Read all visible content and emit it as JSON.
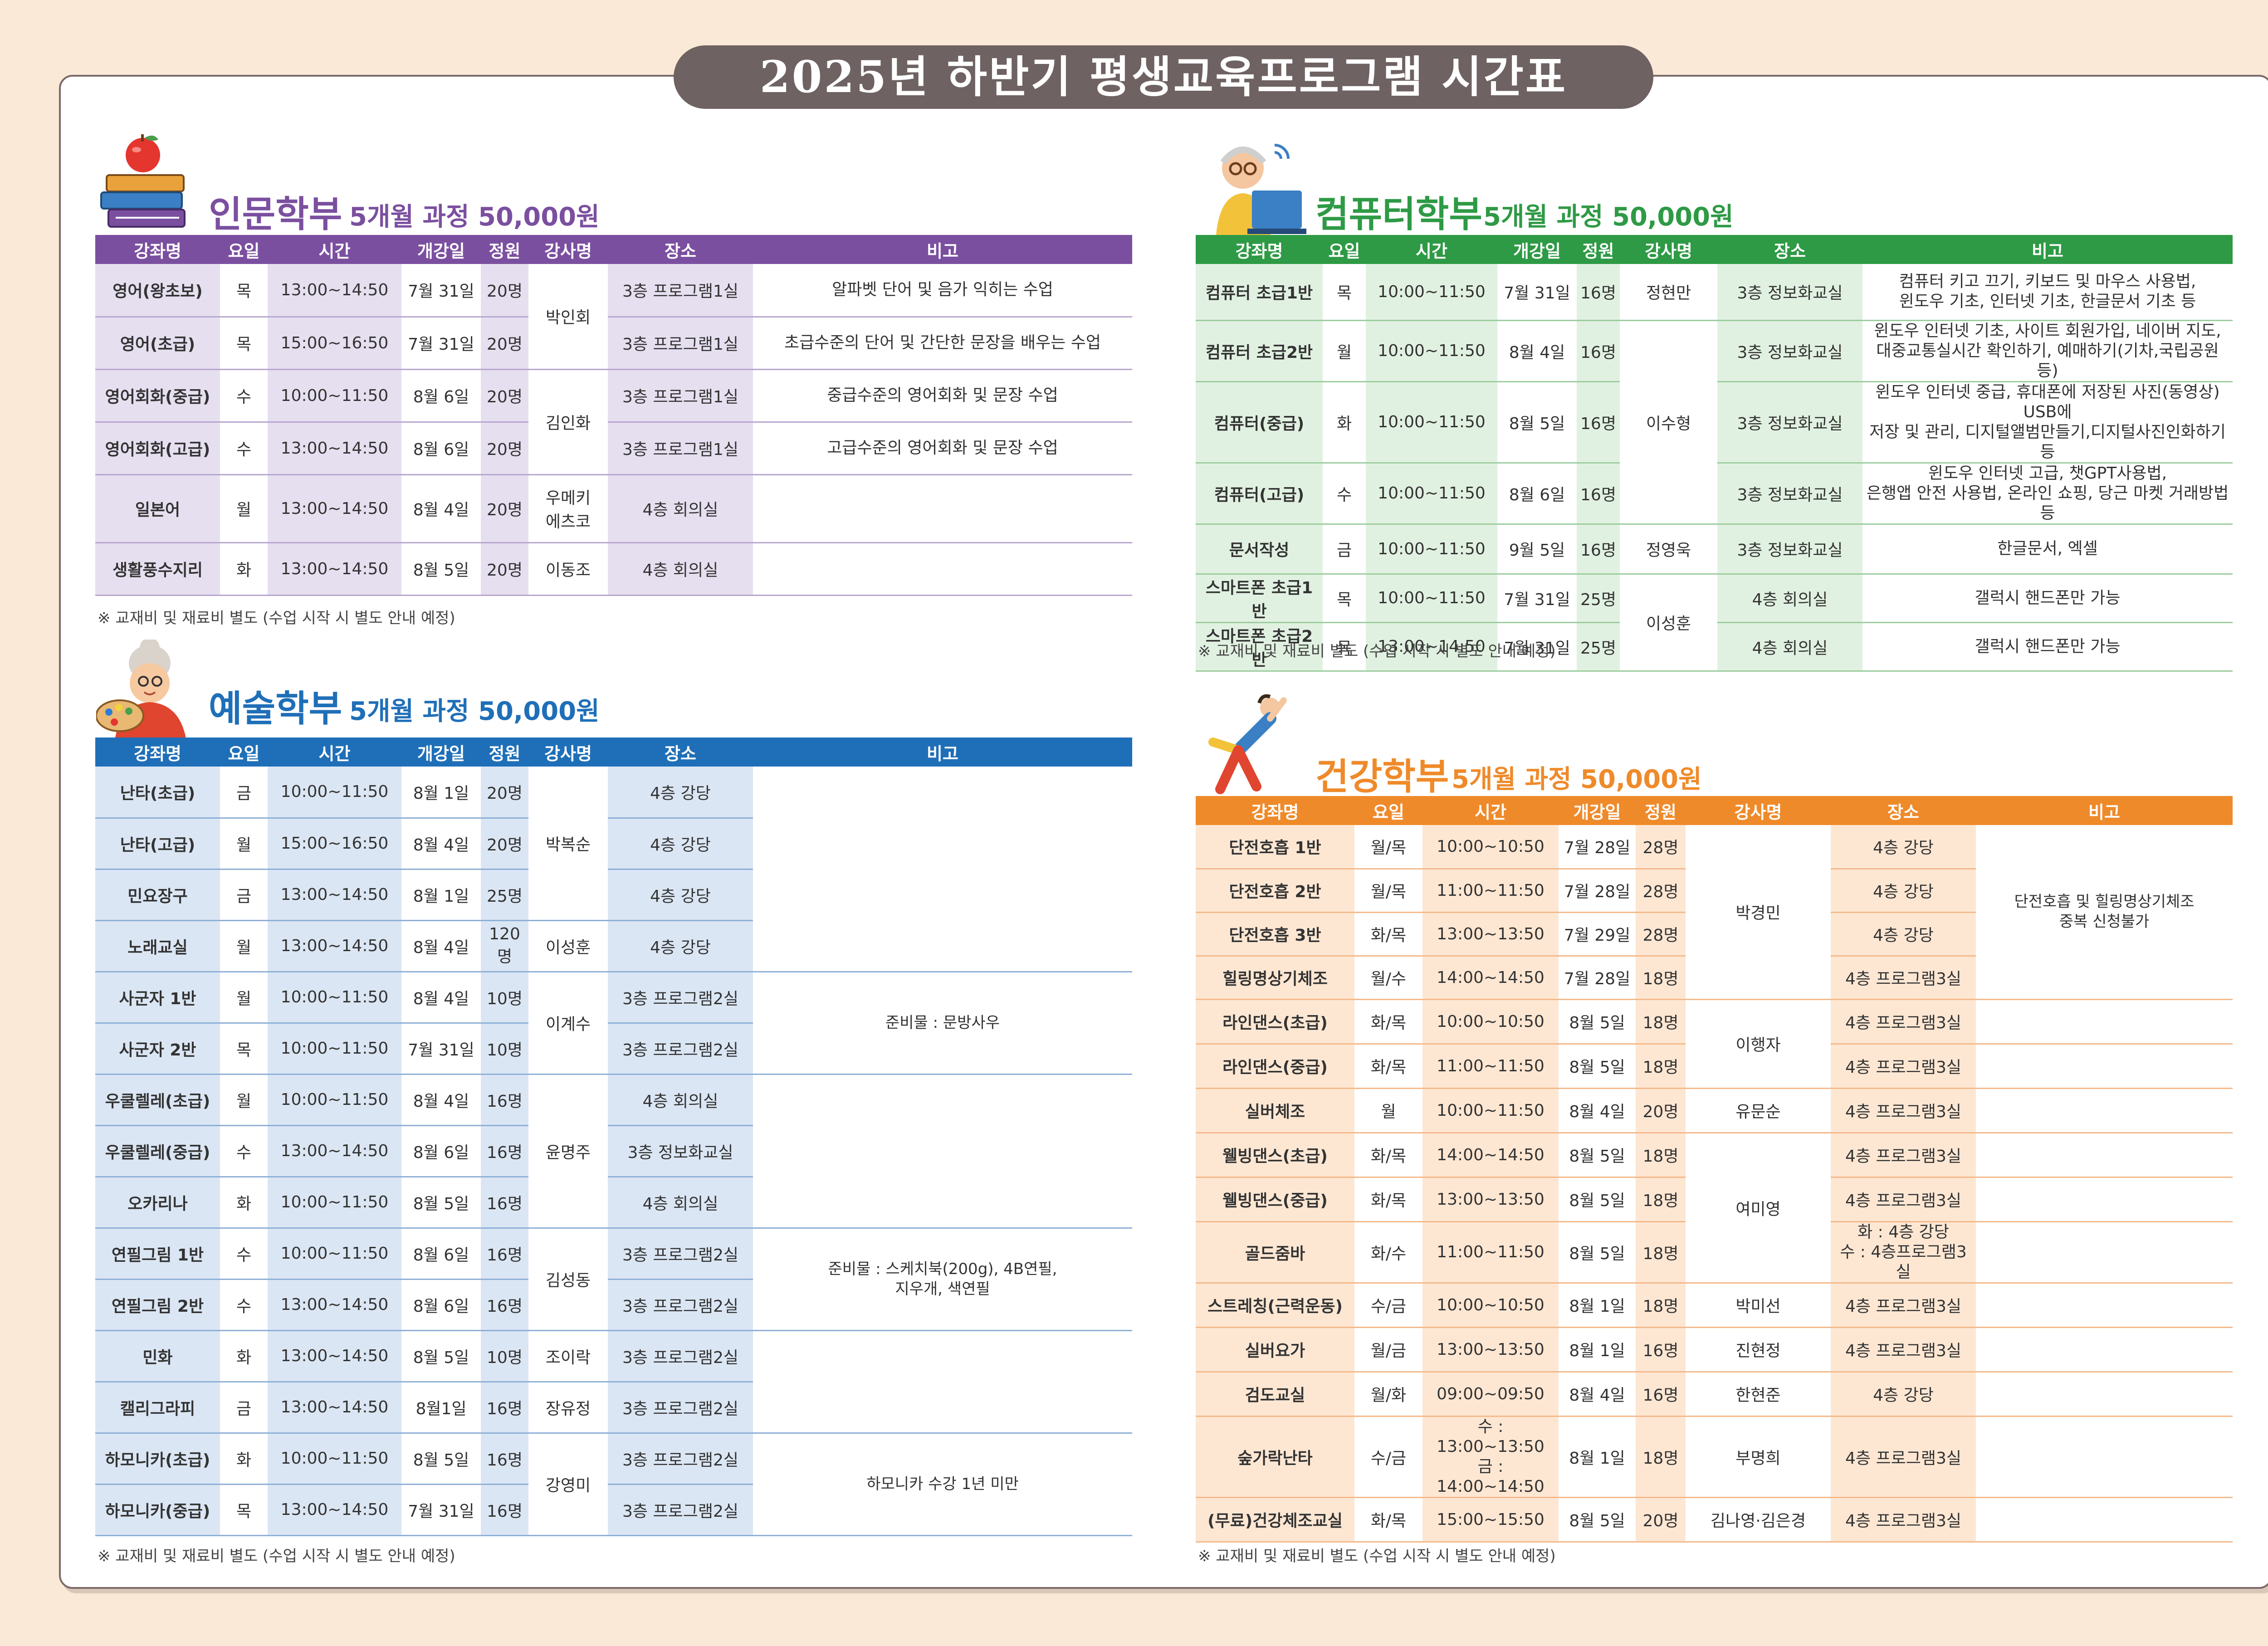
{
  "title": "2025년 하반기 평생교육프로그램 시간표",
  "footnote": "※ 교재비 및 재료비 별도 (수업 시작 시 별도 안내 예정)",
  "headers": [
    "강좌명",
    "요일",
    "시간",
    "개강일",
    "정원",
    "강사명",
    "장소",
    "비고"
  ],
  "humanities": {
    "name": "인문학부",
    "price": "5개월 과정 50,000원",
    "colors": {
      "accent": "#7b4fa0",
      "band": "#e6dff0",
      "line": "#b8a6cf"
    },
    "rows": [
      {
        "course": "영어(왕초보)",
        "day": "목",
        "time": "13:00~14:50",
        "start": "7월 31일",
        "cap": "20명",
        "place": "3층 프로그램1실",
        "note": "알파벳 단어 및 음가 익히는 수업"
      },
      {
        "course": "영어(초급)",
        "day": "목",
        "time": "15:00~16:50",
        "start": "7월 31일",
        "cap": "20명",
        "place": "3층 프로그램1실",
        "note": "초급수준의 단어 및 간단한 문장을 배우는 수업"
      },
      {
        "course": "영어회화(중급)",
        "day": "수",
        "time": "10:00~11:50",
        "start": "8월 6일",
        "cap": "20명",
        "place": "3층 프로그램1실",
        "note": "중급수준의 영어회화 및 문장 수업"
      },
      {
        "course": "영어회화(고급)",
        "day": "수",
        "time": "13:00~14:50",
        "start": "8월 6일",
        "cap": "20명",
        "place": "3층 프로그램1실",
        "note": "고급수준의 영어회화 및 문장 수업"
      },
      {
        "course": "일본어",
        "day": "월",
        "time": "13:00~14:50",
        "start": "8월 4일",
        "cap": "20명",
        "place": "4층 회의실",
        "note": ""
      },
      {
        "course": "생활풍수지리",
        "day": "화",
        "time": "13:00~14:50",
        "start": "8월 5일",
        "cap": "20명",
        "place": "4층 회의실",
        "note": ""
      }
    ],
    "teachers": [
      "박인회",
      "김인화",
      "우메키\n에츠코",
      "이동조"
    ]
  },
  "arts": {
    "name": "예술학부",
    "price": "5개월 과정 50,000원",
    "colors": {
      "accent": "#1f6fb8",
      "band": "#dbe6f4",
      "line": "#8fb0d6"
    },
    "rows": [
      {
        "course": "난타(초급)",
        "day": "금",
        "time": "10:00~11:50",
        "start": "8월 1일",
        "cap": "20명",
        "place": "4층 강당"
      },
      {
        "course": "난타(고급)",
        "day": "월",
        "time": "15:00~16:50",
        "start": "8월 4일",
        "cap": "20명",
        "place": "4층 강당"
      },
      {
        "course": "민요장구",
        "day": "금",
        "time": "13:00~14:50",
        "start": "8월 1일",
        "cap": "25명",
        "place": "4층 강당"
      },
      {
        "course": "노래교실",
        "day": "월",
        "time": "13:00~14:50",
        "start": "8월 4일",
        "cap": "120명",
        "place": "4층 강당"
      },
      {
        "course": "사군자 1반",
        "day": "월",
        "time": "10:00~11:50",
        "start": "8월 4일",
        "cap": "10명",
        "place": "3층 프로그램2실"
      },
      {
        "course": "사군자 2반",
        "day": "목",
        "time": "10:00~11:50",
        "start": "7월 31일",
        "cap": "10명",
        "place": "3층 프로그램2실"
      },
      {
        "course": "우쿨렐레(초급)",
        "day": "월",
        "time": "10:00~11:50",
        "start": "8월 4일",
        "cap": "16명",
        "place": "4층 회의실"
      },
      {
        "course": "우쿨렐레(중급)",
        "day": "수",
        "time": "13:00~14:50",
        "start": "8월 6일",
        "cap": "16명",
        "place": "3층 정보화교실"
      },
      {
        "course": "오카리나",
        "day": "화",
        "time": "10:00~11:50",
        "start": "8월 5일",
        "cap": "16명",
        "place": "4층 회의실"
      },
      {
        "course": "연필그림 1반",
        "day": "수",
        "time": "10:00~11:50",
        "start": "8월 6일",
        "cap": "16명",
        "place": "3층 프로그램2실"
      },
      {
        "course": "연필그림 2반",
        "day": "수",
        "time": "13:00~14:50",
        "start": "8월 6일",
        "cap": "16명",
        "place": "3층 프로그램2실"
      },
      {
        "course": "민화",
        "day": "화",
        "time": "13:00~14:50",
        "start": "8월 5일",
        "cap": "10명",
        "place": "3층 프로그램2실"
      },
      {
        "course": "캘리그라피",
        "day": "금",
        "time": "13:00~14:50",
        "start": "8월1일",
        "cap": "16명",
        "place": "3층 프로그램2실"
      },
      {
        "course": "하모니카(초급)",
        "day": "화",
        "time": "10:00~11:50",
        "start": "8월 5일",
        "cap": "16명",
        "place": "3층 프로그램2실"
      },
      {
        "course": "하모니카(중급)",
        "day": "목",
        "time": "13:00~14:50",
        "start": "7월 31일",
        "cap": "16명",
        "place": "3층 프로그램2실"
      }
    ],
    "teachers": [
      "박복순",
      "이성훈",
      "이계수",
      "윤명주",
      "김성동",
      "조이락",
      "장유정",
      "강영미"
    ],
    "notes": [
      "준비물 : 문방사우",
      "준비물 : 스케치북(200g), 4B연필,\n지우개, 색연필",
      "하모니카 수강 1년 미만"
    ]
  },
  "computer": {
    "name": "컴퓨터학부",
    "price": "5개월 과정 50,000원",
    "colors": {
      "accent": "#2e9a45",
      "band": "#e1f1e1",
      "line": "#9ccd9f"
    },
    "rows": [
      {
        "course": "컴퓨터 초급1반",
        "day": "목",
        "time": "10:00~11:50",
        "start": "7월 31일",
        "cap": "16명",
        "place": "3층 정보화교실",
        "note": "컴퓨터 키고 끄기, 키보드 및 마우스 사용법,\n윈도우 기초, 인터넷 기초, 한글문서 기초 등"
      },
      {
        "course": "컴퓨터 초급2반",
        "day": "월",
        "time": "10:00~11:50",
        "start": "8월 4일",
        "cap": "16명",
        "place": "3층 정보화교실",
        "note": "윈도우 인터넷 기초, 사이트 회원가입, 네이버 지도,\n대중교통실시간 확인하기, 예매하기(기차,국립공원 등)"
      },
      {
        "course": "컴퓨터(중급)",
        "day": "화",
        "time": "10:00~11:50",
        "start": "8월 5일",
        "cap": "16명",
        "place": "3층 정보화교실",
        "note": "윈도우 인터넷 중급, 휴대폰에 저장된 사진(동영상) USB에\n저장 및 관리, 디지털앨범만들기,디지털사진인화하기 등"
      },
      {
        "course": "컴퓨터(고급)",
        "day": "수",
        "time": "10:00~11:50",
        "start": "8월 6일",
        "cap": "16명",
        "place": "3층 정보화교실",
        "note": "윈도우 인터넷 고급, 챗GPT사용법,\n은행앱 안전 사용법, 온라인 쇼핑, 당근 마켓 거래방법 등"
      },
      {
        "course": "문서작성",
        "day": "금",
        "time": "10:00~11:50",
        "start": "9월 5일",
        "cap": "16명",
        "place": "3층 정보화교실",
        "note": "한글문서, 엑셀"
      },
      {
        "course": "스마트폰 초급1반",
        "day": "목",
        "time": "10:00~11:50",
        "start": "7월 31일",
        "cap": "25명",
        "place": "4층 회의실",
        "note": "갤럭시 핸드폰만 가능"
      },
      {
        "course": "스마트폰 초급2반",
        "day": "목",
        "time": "13:00~14:50",
        "start": "7월 31일",
        "cap": "25명",
        "place": "4층 회의실",
        "note": "갤럭시 핸드폰만 가능"
      }
    ],
    "teachers": [
      "정현만",
      "이수형",
      "정영욱",
      "이성훈"
    ]
  },
  "health": {
    "name": "건강학부",
    "price": "5개월 과정 50,000원",
    "colors": {
      "accent": "#ef8a2a",
      "band": "#fde7d3",
      "line": "#f4b98a"
    },
    "rows": [
      {
        "course": "단전호흡 1반",
        "day": "월/목",
        "time": "10:00~10:50",
        "start": "7월 28일",
        "cap": "28명",
        "place": "4층 강당"
      },
      {
        "course": "단전호흡 2반",
        "day": "월/목",
        "time": "11:00~11:50",
        "start": "7월 28일",
        "cap": "28명",
        "place": "4층 강당"
      },
      {
        "course": "단전호흡 3반",
        "day": "화/목",
        "time": "13:00~13:50",
        "start": "7월 29일",
        "cap": "28명",
        "place": "4층 강당"
      },
      {
        "course": "힐링명상기체조",
        "day": "월/수",
        "time": "14:00~14:50",
        "start": "7월 28일",
        "cap": "18명",
        "place": "4층 프로그램3실"
      },
      {
        "course": "라인댄스(초급)",
        "day": "화/목",
        "time": "10:00~10:50",
        "start": "8월 5일",
        "cap": "18명",
        "place": "4층 프로그램3실"
      },
      {
        "course": "라인댄스(중급)",
        "day": "화/목",
        "time": "11:00~11:50",
        "start": "8월 5일",
        "cap": "18명",
        "place": "4층 프로그램3실"
      },
      {
        "course": "실버체조",
        "day": "월",
        "time": "10:00~11:50",
        "start": "8월 4일",
        "cap": "20명",
        "place": "4층 프로그램3실"
      },
      {
        "course": "웰빙댄스(초급)",
        "day": "화/목",
        "time": "14:00~14:50",
        "start": "8월 5일",
        "cap": "18명",
        "place": "4층 프로그램3실"
      },
      {
        "course": "웰빙댄스(중급)",
        "day": "화/목",
        "time": "13:00~13:50",
        "start": "8월 5일",
        "cap": "18명",
        "place": "4층 프로그램3실"
      },
      {
        "course": "골드줌바",
        "day": "화/수",
        "time": "11:00~11:50",
        "start": "8월 5일",
        "cap": "18명",
        "place": "화 : 4층 강당\n수 : 4층프로그램3실"
      },
      {
        "course": "스트레칭(근력운동)",
        "day": "수/금",
        "time": "10:00~10:50",
        "start": "8월 1일",
        "cap": "18명",
        "place": "4층 프로그램3실"
      },
      {
        "course": "실버요가",
        "day": "월/금",
        "time": "13:00~13:50",
        "start": "8월 1일",
        "cap": "16명",
        "place": "4층 프로그램3실"
      },
      {
        "course": "검도교실",
        "day": "월/화",
        "time": "09:00~09:50",
        "start": "8월 4일",
        "cap": "16명",
        "place": "4층 강당"
      },
      {
        "course": "숲가락난타",
        "day": "수/금",
        "time": "수 : 13:00~13:50\n금 : 14:00~14:50",
        "start": "8월 1일",
        "cap": "18명",
        "place": "4층 프로그램3실"
      },
      {
        "course": "(무료)건강체조교실",
        "day": "화/목",
        "time": "15:00~15:50",
        "start": "8월 5일",
        "cap": "20명",
        "place": "4층 프로그램3실"
      }
    ],
    "teachers": [
      "박경민",
      "이행자",
      "유문순",
      "여미영",
      "박미선",
      "진현정",
      "한현준",
      "부명희",
      "김나영·김은경"
    ],
    "notes": [
      "단전호흡 및 힐링명상기체조\n중복 신청불가"
    ]
  },
  "icons": [
    "apple-books-icon",
    "painter-icon",
    "computer-user-icon",
    "stretching-person-icon"
  ]
}
